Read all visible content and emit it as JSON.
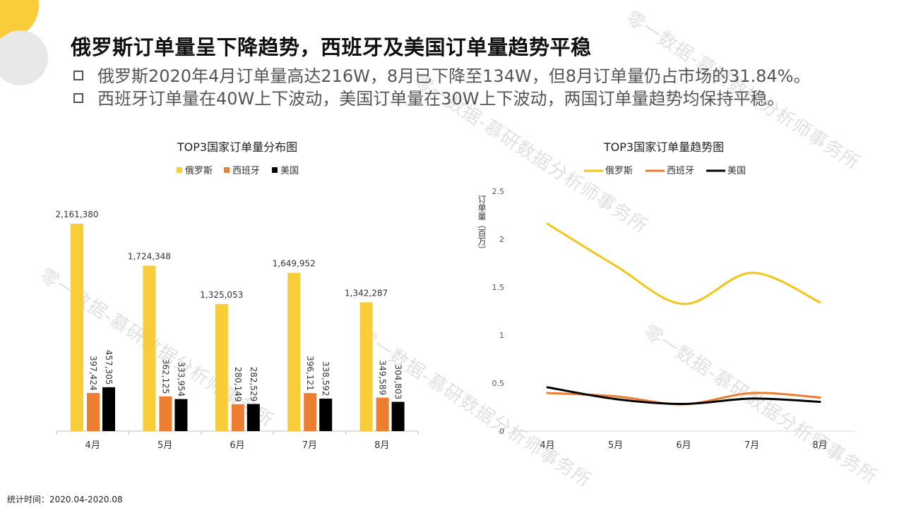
{
  "watermark": "零一数据-慕研数据分析师事务所",
  "title": "俄罗斯订单量呈下降趋势，西班牙及美国订单量趋势平稳",
  "bullets": [
    "俄罗斯2020年4月订单量高达216W，8月已下降至134W，但8月订单量仍占市场的31.84%。",
    "西班牙订单量在40W上下波动，美国订单量在30W上下波动，两国订单量趋势均保持平稳。"
  ],
  "footer": "统计时间：2020.04-2020.08",
  "colors": {
    "russia": "#f9cc3a",
    "spain": "#ed7d31",
    "usa": "#000000",
    "russia_line": "#f5c518"
  },
  "chart_data": [
    {
      "type": "bar",
      "title": "TOP3国家订单量分布图",
      "legend_position": "top",
      "categories": [
        "4月",
        "5月",
        "6月",
        "7月",
        "8月"
      ],
      "series": [
        {
          "name": "俄罗斯",
          "values": [
            2161380,
            1724348,
            1325053,
            1649952,
            1342287
          ],
          "labels": [
            "2,161,380",
            "1,724,348",
            "1,325,053",
            "1,649,952",
            "1,342,287"
          ]
        },
        {
          "name": "西班牙",
          "values": [
            397424,
            362125,
            280149,
            396121,
            349589
          ],
          "labels": [
            "397,424",
            "362,125",
            "280,149",
            "396,121",
            "349,589"
          ]
        },
        {
          "name": "美国",
          "values": [
            457305,
            333954,
            282529,
            338592,
            304803
          ],
          "labels": [
            "457,305",
            "333,954",
            "282,529",
            "338,592",
            "304,803"
          ]
        }
      ],
      "ylim": [
        0,
        2500000
      ],
      "grid": false
    },
    {
      "type": "line",
      "title": "TOP3国家订单量趋势图",
      "legend_position": "top",
      "ylabel": "订单量（百万）",
      "categories": [
        "4月",
        "5月",
        "6月",
        "7月",
        "8月"
      ],
      "yticks": [
        "0",
        "0.5",
        "1",
        "1.5",
        "2",
        "2.5"
      ],
      "ylim": [
        0,
        2.5
      ],
      "grid": false,
      "smooth": true,
      "series": [
        {
          "name": "俄罗斯",
          "values": [
            2.161,
            1.724,
            1.325,
            1.65,
            1.342
          ]
        },
        {
          "name": "西班牙",
          "values": [
            0.397,
            0.362,
            0.28,
            0.396,
            0.35
          ]
        },
        {
          "name": "美国",
          "values": [
            0.457,
            0.334,
            0.283,
            0.339,
            0.305
          ]
        }
      ]
    }
  ]
}
